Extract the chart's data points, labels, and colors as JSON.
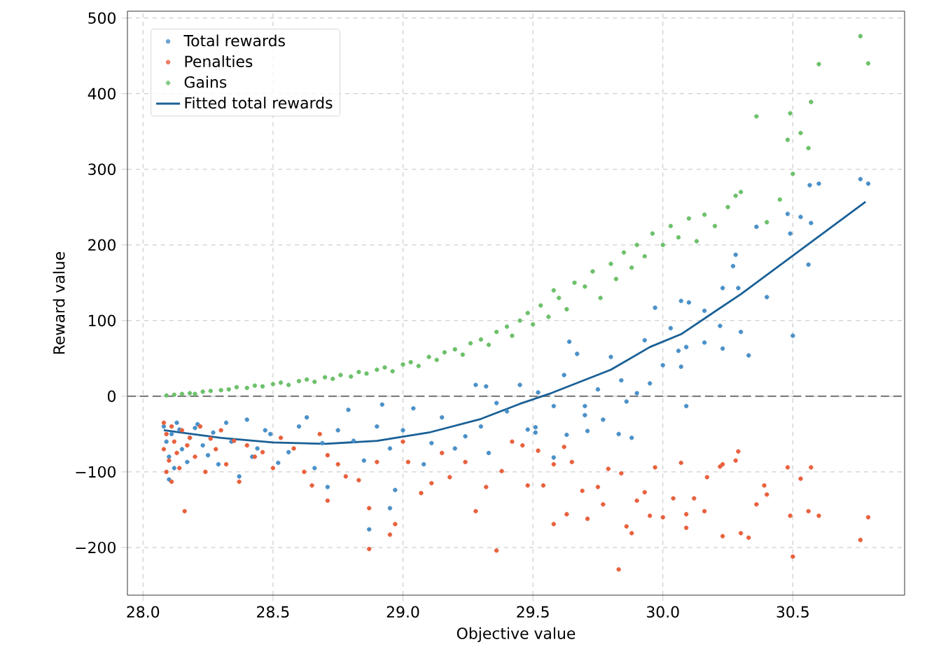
{
  "chart_data": {
    "type": "scatter",
    "xlabel": "Objective value",
    "ylabel": "Reward value",
    "xlim": [
      27.94,
      30.93
    ],
    "ylim": [
      -263,
      509
    ],
    "xticks": [
      {
        "value": 28,
        "label": "28.0"
      },
      {
        "value": 28.5,
        "label": "28.5"
      },
      {
        "value": 29,
        "label": "29.0"
      },
      {
        "value": 29.5,
        "label": "29.5"
      },
      {
        "value": 30,
        "label": "30.0"
      },
      {
        "value": 30.5,
        "label": "30.5"
      }
    ],
    "yticks": [
      {
        "value": -200,
        "label": "−200"
      },
      {
        "value": -100,
        "label": "−100"
      },
      0,
      100,
      200,
      300,
      400,
      500
    ],
    "grid": true,
    "legend": "top left",
    "ref_lines": [
      {
        "axis": "y",
        "value": 0,
        "color": "#808080",
        "line_style": "dashed"
      }
    ],
    "series": [
      {
        "name": "Total rewards",
        "marker": "circle",
        "color": "#4a90c8",
        "x": [
          28.08,
          28.09,
          28.1,
          28.1,
          28.11,
          28.12,
          28.13,
          28.14,
          28.15,
          28.17,
          28.18,
          28.2,
          28.21,
          28.23,
          28.25,
          28.27,
          28.29,
          28.32,
          28.34,
          28.37,
          28.4,
          28.42,
          28.44,
          28.47,
          28.49,
          28.52,
          28.56,
          28.6,
          28.63,
          28.66,
          28.69,
          28.71,
          28.75,
          28.79,
          28.81,
          28.85,
          28.87,
          28.9,
          28.92,
          28.95,
          28.95,
          28.97,
          29.0,
          29.04,
          29.08,
          29.11,
          29.15,
          29.2,
          29.24,
          29.28,
          29.3,
          29.32,
          29.33,
          29.36,
          29.4,
          29.45,
          29.48,
          29.51,
          29.51,
          29.52,
          29.58,
          29.58,
          29.62,
          29.63,
          29.64,
          29.67,
          29.7,
          29.7,
          29.71,
          29.75,
          29.77,
          29.8,
          29.83,
          29.84,
          29.86,
          29.88,
          29.9,
          29.93,
          29.95,
          29.97,
          30.0,
          30.03,
          30.06,
          30.07,
          30.07,
          30.09,
          30.09,
          30.1,
          30.16,
          30.16,
          30.22,
          30.23,
          30.23,
          30.27,
          30.28,
          30.29,
          30.3,
          30.33,
          30.36,
          30.4,
          30.48,
          30.49,
          30.5,
          30.53,
          30.56,
          30.565,
          30.57,
          30.6,
          30.76,
          30.79
        ],
        "values": [
          -40,
          -60,
          -80,
          -110,
          -50,
          -95,
          -35,
          -44,
          -70,
          -87,
          -55,
          -42,
          -37,
          -65,
          -78,
          -48,
          -90,
          -35,
          -60,
          -106,
          -31,
          -80,
          -69,
          -45,
          -50,
          -88,
          -74,
          -40,
          -28,
          -95,
          -62,
          -120,
          -45,
          -18,
          -59,
          -85,
          -176,
          -40,
          -11,
          -69,
          -148,
          -124,
          -45,
          -16,
          -90,
          -62,
          -28,
          -69,
          -53,
          15,
          -40,
          13,
          -75,
          -9,
          -20,
          15,
          -44,
          -41,
          -48,
          5,
          -13,
          -81,
          28,
          -51,
          72,
          56,
          -13,
          -25,
          -46,
          9,
          -31,
          52,
          -50,
          21,
          -7,
          -55,
          4,
          74,
          17,
          117,
          41,
          90,
          60,
          39,
          126,
          65,
          -13,
          124,
          71,
          113,
          93,
          63,
          143,
          172,
          187,
          143,
          85,
          54,
          224,
          131,
          241,
          215,
          80,
          237,
          174,
          279,
          229,
          281,
          287,
          281
        ]
      },
      {
        "name": "Penalties",
        "marker": "circle",
        "color": "#e8603c",
        "x": [
          28.08,
          28.08,
          28.09,
          28.09,
          28.1,
          28.11,
          28.11,
          28.12,
          28.13,
          28.14,
          28.15,
          28.16,
          28.17,
          28.18,
          28.2,
          28.22,
          28.24,
          28.26,
          28.28,
          28.3,
          28.32,
          28.35,
          28.37,
          28.4,
          28.43,
          28.46,
          28.5,
          28.53,
          28.58,
          28.62,
          28.65,
          28.68,
          28.71,
          28.71,
          28.75,
          28.78,
          28.83,
          28.87,
          28.87,
          28.9,
          28.95,
          28.97,
          29.0,
          29.02,
          29.07,
          29.11,
          29.15,
          29.18,
          29.24,
          29.28,
          29.32,
          29.36,
          29.38,
          29.42,
          29.46,
          29.48,
          29.52,
          29.54,
          29.58,
          29.58,
          29.62,
          29.63,
          29.65,
          29.69,
          29.71,
          29.75,
          29.77,
          29.79,
          29.83,
          29.84,
          29.86,
          29.88,
          29.9,
          29.93,
          29.95,
          29.97,
          30.0,
          30.04,
          30.07,
          30.09,
          30.09,
          30.12,
          30.16,
          30.17,
          30.22,
          30.23,
          30.23,
          30.28,
          30.29,
          30.3,
          30.33,
          30.36,
          30.39,
          30.4,
          30.48,
          30.49,
          30.5,
          30.53,
          30.56,
          30.57,
          30.6,
          30.76,
          30.79
        ],
        "values": [
          -35,
          -70,
          -100,
          -50,
          -85,
          -113,
          -40,
          -60,
          -75,
          -95,
          -45,
          -152,
          -65,
          -55,
          -80,
          -40,
          -100,
          -56,
          -70,
          -45,
          -90,
          -59,
          -113,
          -65,
          -80,
          -74,
          -95,
          -55,
          -69,
          -100,
          -118,
          -50,
          -78,
          -138,
          -90,
          -106,
          -111,
          -148,
          -202,
          -87,
          -183,
          -169,
          -60,
          -87,
          -128,
          -115,
          -75,
          -107,
          -87,
          -152,
          -120,
          -204,
          -99,
          -60,
          -65,
          -118,
          -72,
          -118,
          -90,
          -169,
          -67,
          -156,
          -87,
          -125,
          -162,
          -120,
          -143,
          -96,
          -229,
          -102,
          -172,
          -181,
          -138,
          -127,
          -158,
          -94,
          -160,
          -135,
          -88,
          -156,
          -174,
          -135,
          -152,
          -107,
          -93,
          -90,
          -185,
          -85,
          -73,
          -181,
          -187,
          -143,
          -118,
          -130,
          -94,
          -158,
          -212,
          -109,
          -152,
          -94,
          -158,
          -190,
          -160
        ]
      },
      {
        "name": "Gains",
        "marker": "circle",
        "color": "#6cc06a",
        "x": [
          28.09,
          28.12,
          28.15,
          28.18,
          28.2,
          28.23,
          28.26,
          28.3,
          28.33,
          28.36,
          28.4,
          28.43,
          28.46,
          28.5,
          28.53,
          28.56,
          28.6,
          28.63,
          28.66,
          28.7,
          28.73,
          28.76,
          28.8,
          28.83,
          28.86,
          28.9,
          28.93,
          28.96,
          29.0,
          29.03,
          29.06,
          29.1,
          29.13,
          29.16,
          29.2,
          29.23,
          29.26,
          29.3,
          29.33,
          29.36,
          29.4,
          29.42,
          29.45,
          29.48,
          29.5,
          29.53,
          29.56,
          29.58,
          29.6,
          29.63,
          29.66,
          29.7,
          29.73,
          29.76,
          29.8,
          29.82,
          29.85,
          29.88,
          29.9,
          29.93,
          29.96,
          30.0,
          30.03,
          30.06,
          30.1,
          30.13,
          30.16,
          30.2,
          30.25,
          30.28,
          30.3,
          30.36,
          30.4,
          30.45,
          30.48,
          30.49,
          30.5,
          30.53,
          30.56,
          30.57,
          30.6,
          30.76,
          30.79
        ],
        "values": [
          1,
          2,
          3,
          4,
          3,
          6,
          7,
          8,
          9,
          12,
          11,
          14,
          13,
          16,
          18,
          15,
          20,
          22,
          19,
          25,
          23,
          28,
          26,
          32,
          30,
          35,
          38,
          33,
          42,
          45,
          40,
          52,
          48,
          58,
          62,
          55,
          70,
          75,
          68,
          85,
          92,
          80,
          100,
          110,
          95,
          120,
          105,
          140,
          130,
          115,
          150,
          145,
          165,
          130,
          175,
          155,
          190,
          170,
          200,
          185,
          215,
          200,
          225,
          210,
          235,
          205,
          240,
          225,
          250,
          265,
          270,
          370,
          230,
          260,
          339,
          374,
          294,
          348,
          328,
          389,
          439,
          476,
          440
        ]
      },
      {
        "name": "Fitted total rewards",
        "type": "line",
        "marker": "none",
        "color": "#1a6096",
        "x": [
          28.08,
          28.3,
          28.5,
          28.7,
          28.9,
          29.1,
          29.3,
          29.45,
          29.57,
          29.8,
          29.95,
          30.07,
          30.3,
          30.52,
          30.78
        ],
        "values": [
          -45,
          -55,
          -61,
          -63,
          -59,
          -48,
          -30,
          -10,
          4,
          35,
          65,
          82,
          135,
          191,
          257
        ]
      }
    ]
  }
}
